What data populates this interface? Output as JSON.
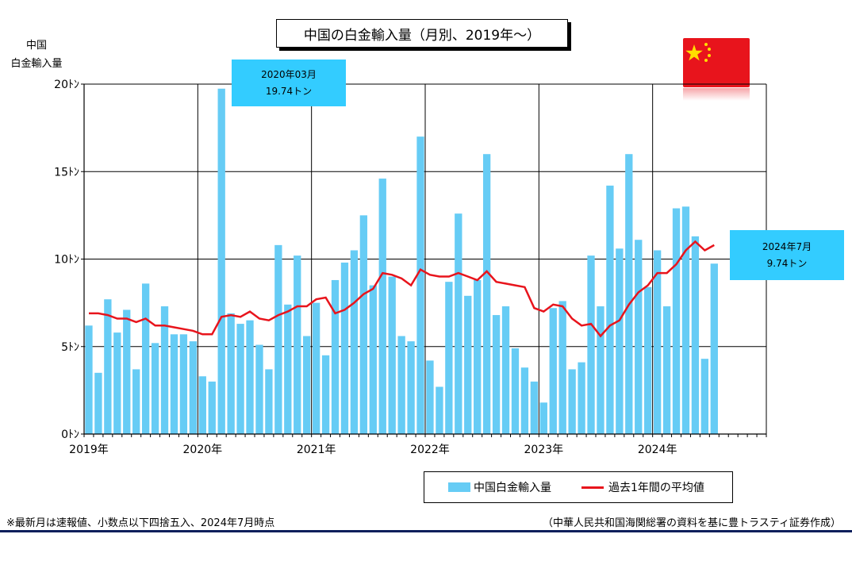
{
  "title": "中国の白金輸入量（月別、2019年～）",
  "y_axis_label": "中国\n白金輸入量",
  "callouts": [
    {
      "line1": "2020年03月",
      "line2": "19.74トン"
    },
    {
      "line1": "2024年7月",
      "line2": "9.74トン"
    }
  ],
  "legend": {
    "bar": "中国白金輸入量",
    "line": "過去1年間の平均値"
  },
  "footnote": "※最新月は速報値、小数点以下四捨五入、2024年7月時点",
  "source": "（中華人民共和国海関総署の資料を基に豊トラスティ証券作成）",
  "colors": {
    "bar": "#66ccf5",
    "line": "#e8141c",
    "callout": "#33ccff",
    "rule": "#0b1f5c"
  },
  "flag_icon": "china-flag-icon",
  "chart_data": {
    "type": "bar",
    "title": "中国の白金輸入量（月別、2019年～）",
    "ylabel": "中国 白金輸入量",
    "ylim": [
      0,
      20
    ],
    "y_ticks": [
      0,
      5,
      10,
      15,
      20
    ],
    "y_tick_labels": [
      "0ﾄﾝ",
      "5ﾄﾝ",
      "10ﾄﾝ",
      "15ﾄﾝ",
      "20ﾄﾝ"
    ],
    "x_year_labels": [
      "2019年",
      "2020年",
      "2021年",
      "2022年",
      "2023年",
      "2024年"
    ],
    "start": "2019-01",
    "months_on_axis": 72,
    "grid": true,
    "legend_position": "bottom",
    "series": [
      {
        "name": "中国白金輸入量",
        "type": "bar",
        "values": [
          6.2,
          3.5,
          7.7,
          5.8,
          7.1,
          3.7,
          8.6,
          5.2,
          7.3,
          5.7,
          5.7,
          5.3,
          3.3,
          3.0,
          19.74,
          6.9,
          6.3,
          6.5,
          5.1,
          3.7,
          10.8,
          7.4,
          10.2,
          5.6,
          7.5,
          4.5,
          8.8,
          9.8,
          10.5,
          12.5,
          8.5,
          14.6,
          9.0,
          5.6,
          5.3,
          17.0,
          4.2,
          2.7,
          8.7,
          12.6,
          7.9,
          8.8,
          16.0,
          6.8,
          7.3,
          4.9,
          3.8,
          3.0,
          1.8,
          7.2,
          7.6,
          3.7,
          4.1,
          10.2,
          7.3,
          14.2,
          10.6,
          16.0,
          11.1,
          8.4,
          10.5,
          7.3,
          12.9,
          13.0,
          11.3,
          4.3,
          9.74
        ]
      },
      {
        "name": "過去1年間の平均値",
        "type": "line",
        "values": [
          6.9,
          6.9,
          6.8,
          6.6,
          6.6,
          6.4,
          6.6,
          6.2,
          6.2,
          6.1,
          6.0,
          5.9,
          5.7,
          5.7,
          6.7,
          6.8,
          6.7,
          7.0,
          6.6,
          6.5,
          6.8,
          7.0,
          7.3,
          7.3,
          7.7,
          7.8,
          6.9,
          7.1,
          7.5,
          8.0,
          8.3,
          9.2,
          9.1,
          8.9,
          8.5,
          9.4,
          9.1,
          9.0,
          9.0,
          9.2,
          9.0,
          8.8,
          9.3,
          8.7,
          8.6,
          8.5,
          8.4,
          7.2,
          7.0,
          7.4,
          7.3,
          6.6,
          6.2,
          6.3,
          5.6,
          6.2,
          6.5,
          7.4,
          8.1,
          8.5,
          9.2,
          9.2,
          9.7,
          10.5,
          11.0,
          10.5,
          10.8
        ]
      }
    ],
    "annotations": [
      {
        "month": "2020-03",
        "text": "2020年03月 19.74トン"
      },
      {
        "month": "2024-07",
        "text": "2024年7月 9.74トン"
      }
    ]
  }
}
